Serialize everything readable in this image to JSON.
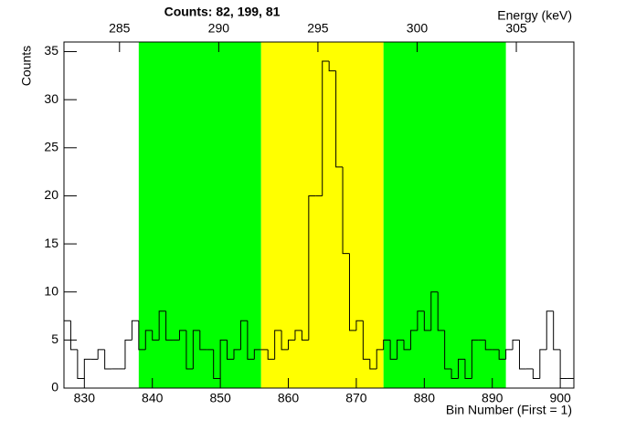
{
  "chart_data": {
    "type": "histogram",
    "title": "Counts:   82,   199,   81",
    "xlabel": "Bin Number (First = 1)",
    "ylabel": "Counts",
    "x2label": "Energy (keV)",
    "bins": [
      827,
      828,
      829,
      830,
      831,
      832,
      833,
      834,
      835,
      836,
      837,
      838,
      839,
      840,
      841,
      842,
      843,
      844,
      845,
      846,
      847,
      848,
      849,
      850,
      851,
      852,
      853,
      854,
      855,
      856,
      857,
      858,
      859,
      860,
      861,
      862,
      863,
      864,
      865,
      866,
      867,
      868,
      869,
      870,
      871,
      872,
      873,
      874,
      875,
      876,
      877,
      878,
      879,
      880,
      881,
      882,
      883,
      884,
      885,
      886,
      887,
      888,
      889,
      890,
      891,
      892,
      893,
      894,
      895,
      896,
      897,
      898,
      899,
      900,
      901,
      902
    ],
    "values": [
      7,
      4,
      1,
      3,
      3,
      4,
      2,
      2,
      2,
      5,
      7,
      4,
      6,
      5,
      8,
      5,
      5,
      6,
      2,
      6,
      4,
      4,
      1,
      5,
      3,
      4,
      7,
      3,
      4,
      4,
      3,
      6,
      4,
      5,
      6,
      5,
      20,
      20,
      34,
      33,
      23,
      14,
      6,
      7,
      3,
      2,
      4,
      5,
      3,
      5,
      4,
      6,
      8,
      6,
      10,
      6,
      2,
      1,
      3,
      1,
      5,
      5,
      4,
      4,
      3,
      4,
      5,
      2,
      2,
      1,
      4,
      8,
      4,
      1,
      1
    ],
    "color": "#000000",
    "regions": [
      {
        "from": 838,
        "to": 856,
        "color": "#00ff00"
      },
      {
        "from": 856,
        "to": 874,
        "color": "#ffff00"
      },
      {
        "from": 874,
        "to": 892,
        "color": "#00ff00"
      }
    ],
    "xlim": [
      827,
      902
    ],
    "xticks": [
      830,
      840,
      850,
      860,
      870,
      880,
      890,
      900
    ],
    "ylim": [
      0,
      36
    ],
    "yticks": [
      0,
      5,
      10,
      15,
      20,
      25,
      30,
      35
    ],
    "x2lim": [
      282.2,
      307.9
    ],
    "x2ticks": [
      285,
      290,
      295,
      300,
      305
    ]
  }
}
